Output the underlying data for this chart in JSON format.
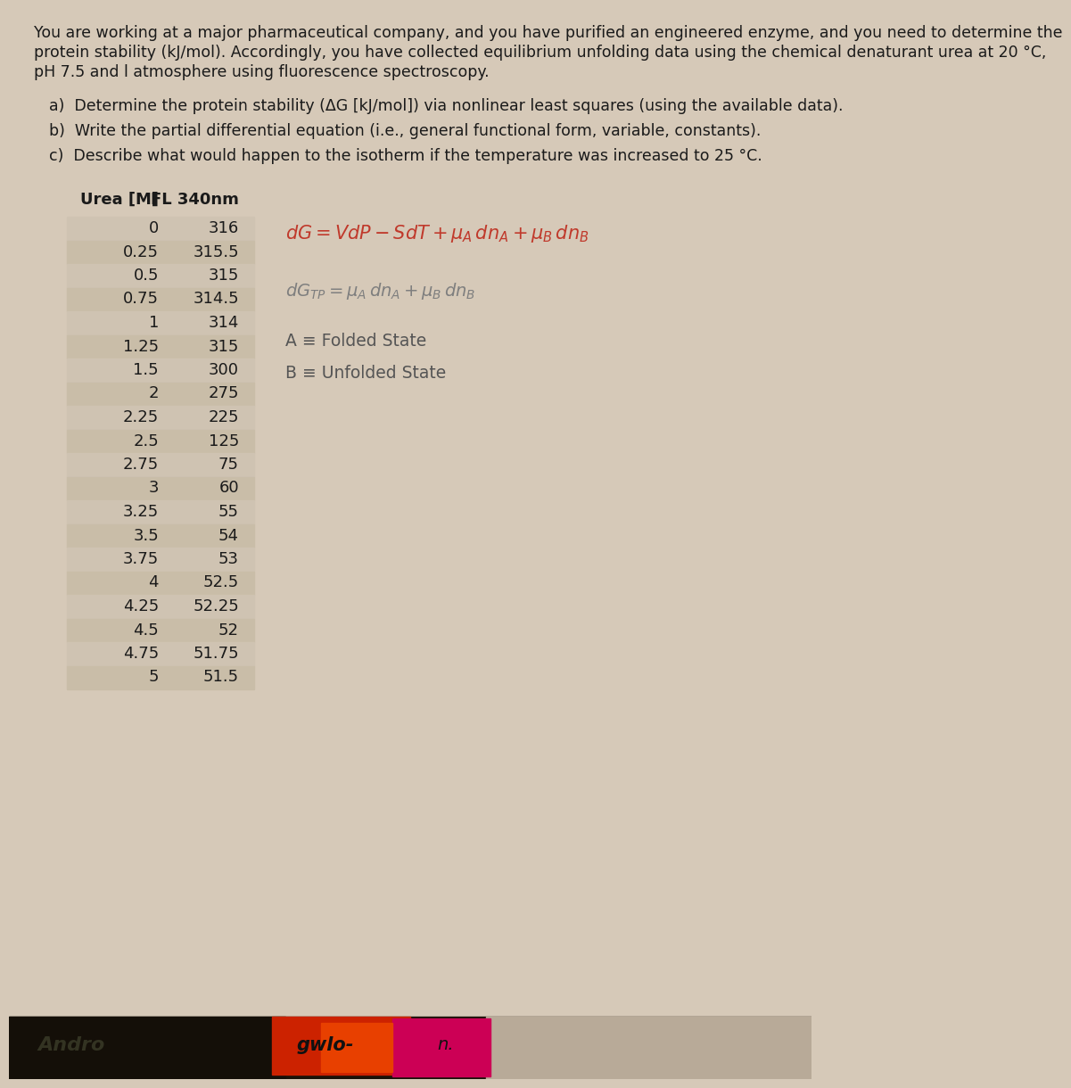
{
  "title_line1": "You are working at a major pharmaceutical company, and you have purified an engineered enzyme, and you need to determine the",
  "title_line2": "protein stability (kJ/mol). Accordingly, you have collected equilibrium unfolding data using the chemical denaturant urea at 20 °C,",
  "title_line3": "pH 7.5 and l atmosphere using fluorescence spectroscopy.",
  "q_a": "a)  Determine the protein stability (ΔG [kJ/mol]) via nonlinear least squares (using the available data).",
  "q_b": "b)  Write the partial differential equation (i.e., general functional form, variable, constants).",
  "q_c": "c)  Describe what would happen to the isotherm if the temperature was increased to 25 °C.",
  "col1_header": "Urea [M]",
  "col2_header": "FL 340nm",
  "urea": [
    0,
    0.25,
    0.5,
    0.75,
    1,
    1.25,
    1.5,
    2,
    2.25,
    2.5,
    2.75,
    3,
    3.25,
    3.5,
    3.75,
    4,
    4.25,
    4.5,
    4.75,
    5
  ],
  "fl": [
    316,
    315.5,
    315,
    314.5,
    314,
    315,
    300,
    275,
    225,
    125,
    75,
    60,
    55,
    54,
    53,
    52.5,
    52.25,
    52,
    51.75,
    51.5
  ],
  "bg_color": "#d6c9b8",
  "font_color": "#1a1a1a",
  "eq1_color": "#c0392b",
  "eq2_color": "#7f7f7f",
  "eq34_color": "#555555",
  "bottom_bg": "#1a1208",
  "bottom_red": "#cc2200",
  "bottom_orange": "#e84000",
  "bottom_pink": "#cc0055",
  "bottom_light": "#b8aa98"
}
